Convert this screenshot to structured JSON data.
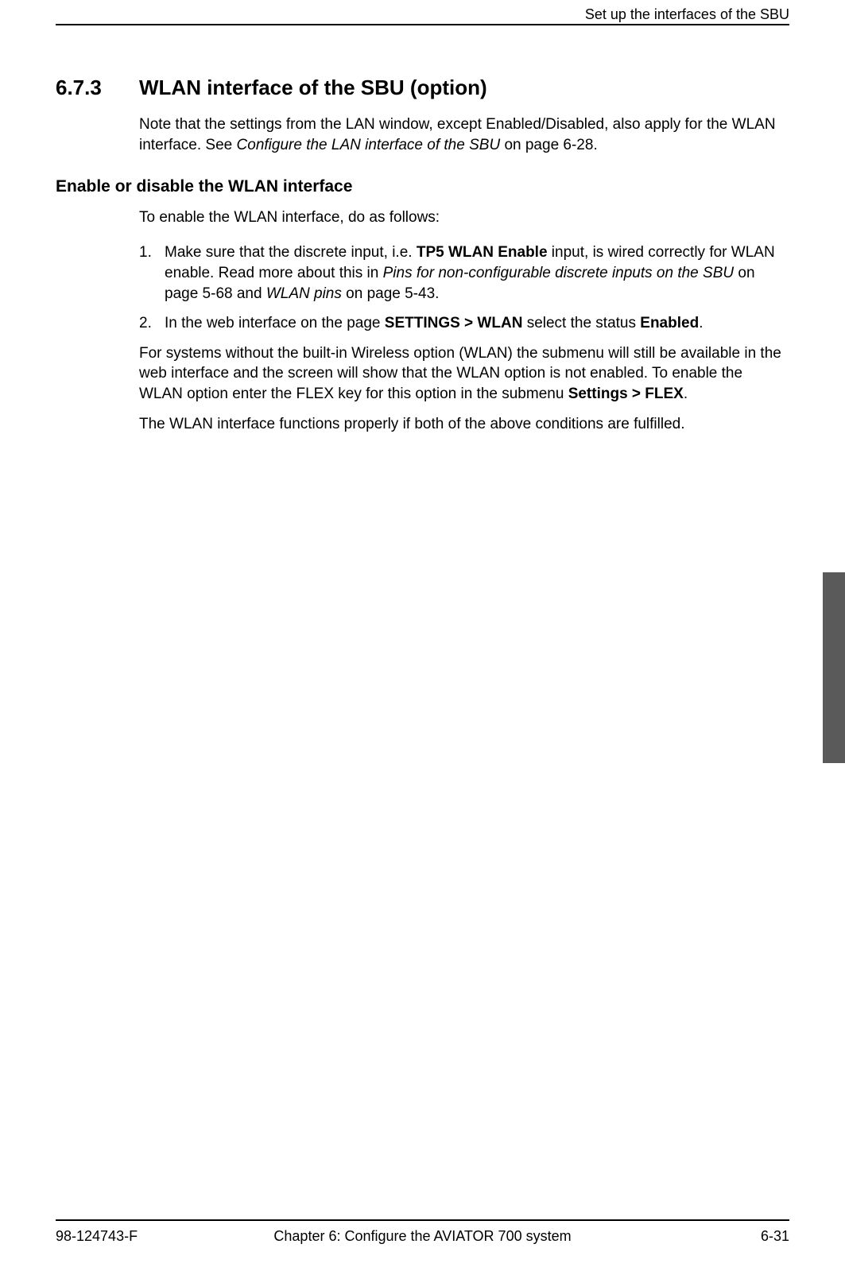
{
  "header": {
    "running_title": "Set up the interfaces of the SBU"
  },
  "section": {
    "number": "6.7.3",
    "title": "WLAN interface of the SBU (option)",
    "intro": {
      "prefix": "Note that the settings from the LAN window, except Enabled/Disabled, also apply for the WLAN interface. See ",
      "ref_italic": "Configure the LAN interface of the SBU",
      "suffix": " on page 6-28."
    }
  },
  "subsection": {
    "heading": "Enable or disable the WLAN interface",
    "lead": "To enable the WLAN interface, do as follows:",
    "items": [
      {
        "num": "1.",
        "p1": "Make sure that the discrete input, i.e. ",
        "b1": "TP5 WLAN Enable",
        "p2": " input, is wired correctly for WLAN enable. Read more about this in ",
        "i1": "Pins for non-configurable discrete inputs on the SBU",
        "p3": " on page 5-68 and ",
        "i2": "WLAN pins",
        "p4": " on page 5-43."
      },
      {
        "num": "2.",
        "p1": "In the web interface on the page ",
        "b1": "SETTINGS > WLAN",
        "p2": " select the status ",
        "b2": "Enabled",
        "p3": "."
      }
    ],
    "para1": {
      "p1": "For systems without the built-in Wireless option (WLAN) the submenu will still be available in the web interface and the screen will show that the WLAN option is not enabled. To enable the WLAN option enter the FLEX key for this option in the submenu ",
      "b1": "Settings > FLEX",
      "p2": "."
    },
    "para2": "The WLAN interface functions properly if both of the above conditions are fulfilled."
  },
  "footer": {
    "doc_id": "98-124743-F",
    "chapter": "Chapter 6:  Configure the AVIATOR 700 system",
    "page": "6-31"
  },
  "colors": {
    "text": "#000000",
    "background": "#ffffff",
    "side_tab": "#5a5a5a",
    "rule": "#000000"
  },
  "typography": {
    "body_fontsize": 19,
    "heading_fontsize": 26,
    "subheading_fontsize": 21,
    "header_footer_fontsize": 18,
    "font_family": "Segoe UI, Tahoma, Geneva, sans-serif"
  }
}
